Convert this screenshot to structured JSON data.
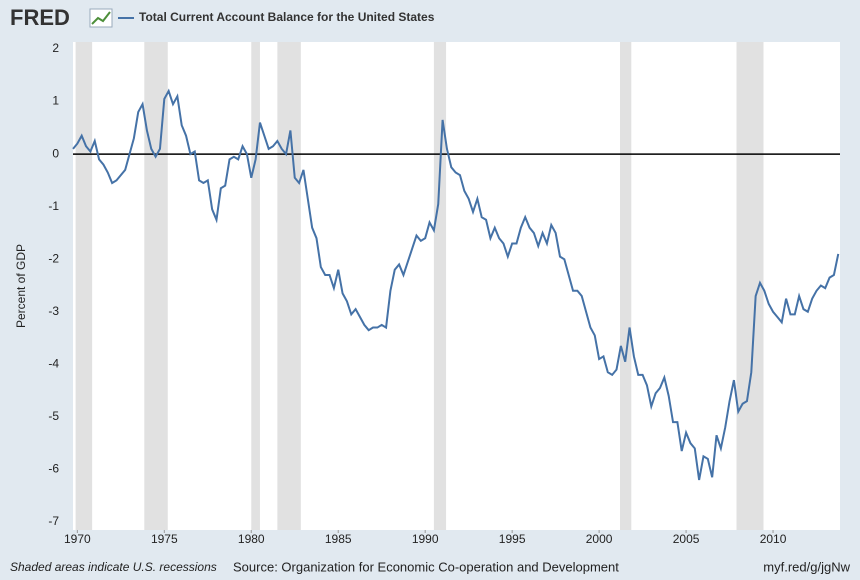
{
  "chart_data": {
    "type": "line",
    "logo": "FRED",
    "title": "Total Current Account Balance for the United States",
    "y_label": "Percent of GDP",
    "note": "Shaded areas indicate U.S. recessions",
    "source": "Source: Organization for Economic Co-operation and Development",
    "link": "myf.red/g/jgNw",
    "xlim": [
      1969.75,
      2013.85
    ],
    "xticks": [
      1970,
      1975,
      1980,
      1985,
      1990,
      1995,
      2000,
      2005,
      2010
    ],
    "ylim": [
      -7,
      2
    ],
    "yticks": [
      2,
      1,
      0,
      -1,
      -2,
      -3,
      -4,
      -5,
      -6,
      -7
    ],
    "grid": true,
    "recession_color": "#e1e1e1",
    "recessions": [
      [
        1969.9,
        1970.85
      ],
      [
        1973.85,
        1975.2
      ],
      [
        1980.0,
        1980.5
      ],
      [
        1981.5,
        1982.85
      ],
      [
        1990.5,
        1991.2
      ],
      [
        2001.2,
        2001.85
      ],
      [
        2007.9,
        2009.45
      ]
    ],
    "x": [
      1969.75,
      1970,
      1970.25,
      1970.5,
      1970.75,
      1971,
      1971.25,
      1971.5,
      1971.75,
      1972,
      1972.25,
      1972.5,
      1972.75,
      1973,
      1973.25,
      1973.5,
      1973.75,
      1974,
      1974.25,
      1974.5,
      1974.75,
      1975,
      1975.25,
      1975.5,
      1975.75,
      1976,
      1976.25,
      1976.5,
      1976.75,
      1977,
      1977.25,
      1977.5,
      1977.75,
      1978,
      1978.25,
      1978.5,
      1978.75,
      1979,
      1979.25,
      1979.5,
      1979.75,
      1980,
      1980.25,
      1980.5,
      1980.75,
      1981,
      1981.25,
      1981.5,
      1981.75,
      1982,
      1982.25,
      1982.5,
      1982.75,
      1983,
      1983.25,
      1983.5,
      1983.75,
      1984,
      1984.25,
      1984.5,
      1984.75,
      1985,
      1985.25,
      1985.5,
      1985.75,
      1986,
      1986.25,
      1986.5,
      1986.75,
      1987,
      1987.25,
      1987.5,
      1987.75,
      1988,
      1988.25,
      1988.5,
      1988.75,
      1989,
      1989.25,
      1989.5,
      1989.75,
      1990,
      1990.25,
      1990.5,
      1990.75,
      1991,
      1991.25,
      1991.5,
      1991.75,
      1992,
      1992.25,
      1992.5,
      1992.75,
      1993,
      1993.25,
      1993.5,
      1993.75,
      1994,
      1994.25,
      1994.5,
      1994.75,
      1995,
      1995.25,
      1995.5,
      1995.75,
      1996,
      1996.25,
      1996.5,
      1996.75,
      1997,
      1997.25,
      1997.5,
      1997.75,
      1998,
      1998.25,
      1998.5,
      1998.75,
      1999,
      1999.25,
      1999.5,
      1999.75,
      2000,
      2000.25,
      2000.5,
      2000.75,
      2001,
      2001.25,
      2001.5,
      2001.75,
      2002,
      2002.25,
      2002.5,
      2002.75,
      2003,
      2003.25,
      2003.5,
      2003.75,
      2004,
      2004.25,
      2004.5,
      2004.75,
      2005,
      2005.25,
      2005.5,
      2005.75,
      2006,
      2006.25,
      2006.5,
      2006.75,
      2007,
      2007.25,
      2007.5,
      2007.75,
      2008,
      2008.25,
      2008.5,
      2008.75,
      2009,
      2009.25,
      2009.5,
      2009.75,
      2010,
      2010.25,
      2010.5,
      2010.75,
      2011,
      2011.25,
      2011.5,
      2011.75,
      2012,
      2012.25,
      2012.5,
      2012.75,
      2013,
      2013.25,
      2013.5,
      2013.75
    ],
    "series": [
      {
        "name": "Total Current Account Balance for the United States",
        "color": "#4572a7",
        "values": [
          0.1,
          0.2,
          0.35,
          0.15,
          0.05,
          0.25,
          -0.1,
          -0.2,
          -0.35,
          -0.55,
          -0.5,
          -0.4,
          -0.3,
          0.0,
          0.3,
          0.8,
          0.95,
          0.45,
          0.1,
          -0.05,
          0.1,
          1.05,
          1.2,
          0.95,
          1.1,
          0.55,
          0.35,
          0.0,
          0.05,
          -0.5,
          -0.55,
          -0.5,
          -1.05,
          -1.25,
          -0.65,
          -0.6,
          -0.1,
          -0.05,
          -0.1,
          0.15,
          0.0,
          -0.45,
          -0.1,
          0.6,
          0.35,
          0.1,
          0.15,
          0.25,
          0.1,
          0.0,
          0.45,
          -0.45,
          -0.55,
          -0.3,
          -0.85,
          -1.4,
          -1.6,
          -2.15,
          -2.3,
          -2.3,
          -2.55,
          -2.2,
          -2.65,
          -2.8,
          -3.05,
          -2.95,
          -3.1,
          -3.25,
          -3.35,
          -3.3,
          -3.3,
          -3.25,
          -3.3,
          -2.6,
          -2.2,
          -2.1,
          -2.3,
          -2.05,
          -1.8,
          -1.55,
          -1.65,
          -1.6,
          -1.3,
          -1.45,
          -0.95,
          0.65,
          0.1,
          -0.25,
          -0.35,
          -0.4,
          -0.7,
          -0.85,
          -1.1,
          -0.85,
          -1.2,
          -1.25,
          -1.6,
          -1.4,
          -1.6,
          -1.7,
          -1.95,
          -1.7,
          -1.7,
          -1.4,
          -1.2,
          -1.4,
          -1.5,
          -1.75,
          -1.5,
          -1.7,
          -1.35,
          -1.5,
          -1.95,
          -2.0,
          -2.3,
          -2.6,
          -2.6,
          -2.7,
          -3.0,
          -3.3,
          -3.45,
          -3.9,
          -3.85,
          -4.15,
          -4.2,
          -4.1,
          -3.65,
          -3.95,
          -3.3,
          -3.85,
          -4.2,
          -4.2,
          -4.4,
          -4.8,
          -4.55,
          -4.45,
          -4.25,
          -4.6,
          -5.1,
          -5.1,
          -5.65,
          -5.3,
          -5.5,
          -5.6,
          -6.2,
          -5.75,
          -5.8,
          -6.15,
          -5.35,
          -5.6,
          -5.2,
          -4.7,
          -4.3,
          -4.9,
          -4.75,
          -4.7,
          -4.15,
          -2.7,
          -2.45,
          -2.6,
          -2.85,
          -3.0,
          -3.1,
          -3.2,
          -2.75,
          -3.05,
          -3.05,
          -2.7,
          -2.95,
          -3.0,
          -2.75,
          -2.6,
          -2.5,
          -2.55,
          -2.35,
          -2.3,
          -1.9
        ]
      }
    ]
  }
}
